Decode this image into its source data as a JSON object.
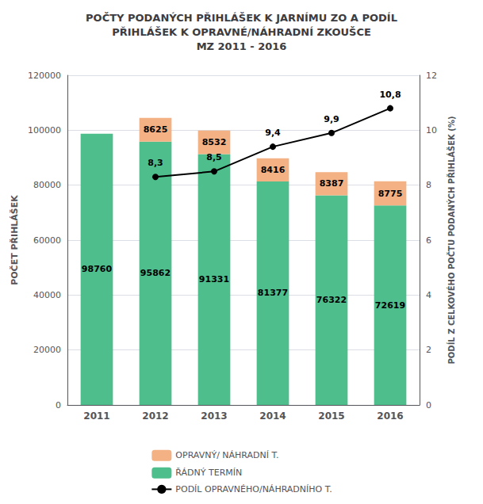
{
  "chart_data": {
    "type": "bar",
    "title": "POČTY PODANÝCH PŘIHLÁŠEK K JARNÍMU ZO A PODÍL\nPŘIHLÁŠEK K OPRAVNÉ/NÁHRADNÍ ZKOUŠCE\nMZ 2011 - 2016",
    "categories": [
      "2011",
      "2012",
      "2013",
      "2014",
      "2015",
      "2016"
    ],
    "stacked": true,
    "series": [
      {
        "name": "ŘÁDNÝ TERMÍN",
        "type": "bar",
        "color": "#4dbe8c",
        "values": [
          98760,
          95862,
          91331,
          81377,
          76322,
          72619
        ],
        "data_labels": true
      },
      {
        "name": "OPRAVNÝ/ NÁHRADNÍ T.",
        "type": "bar",
        "color": "#f4b183",
        "values": [
          0,
          8625,
          8532,
          8416,
          8387,
          8775
        ],
        "data_labels": true,
        "value_labels": [
          null,
          "8625",
          "8532",
          "8416",
          "8387",
          "8775"
        ]
      },
      {
        "name": "PODÍL OPRAVNÉHO/NÁHRADNÍHO T.",
        "type": "line",
        "axis": "y2",
        "color": "#000000",
        "marker": "circle",
        "data_labels": true,
        "values": [
          null,
          8.3,
          8.5,
          9.4,
          9.9,
          10.8
        ],
        "value_labels": [
          null,
          "8,3",
          "8,5",
          "9,4",
          "9,9",
          "10,8"
        ]
      }
    ],
    "ylabel": "POČET PŘIHLÁŠEK",
    "y2label": "PODÍL Z CELKOVÉHO POČTU PODANÝCH PŘIHLÁŠEK (%)",
    "ylim": [
      0,
      120000
    ],
    "yticks": [
      0,
      20000,
      40000,
      60000,
      80000,
      100000,
      120000
    ],
    "y2lim": [
      0,
      12
    ],
    "y2ticks": [
      0,
      2,
      4,
      6,
      8,
      10,
      12
    ],
    "grid": true,
    "legend": "bottom"
  }
}
